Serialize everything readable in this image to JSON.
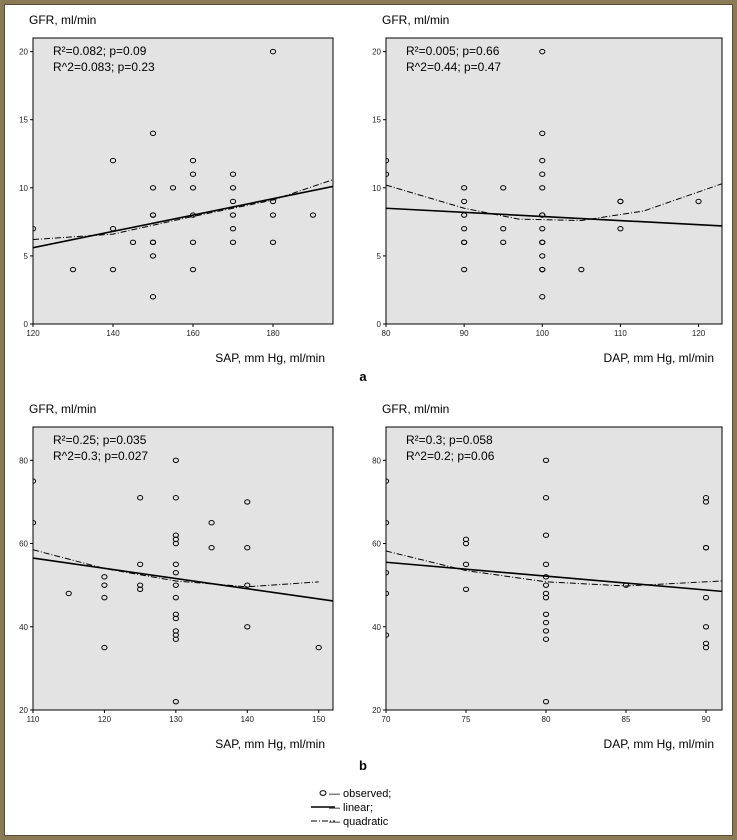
{
  "chart_data": [
    {
      "type": "scatter",
      "panel_group": "a",
      "ylabel": "GFR, ml/min",
      "xlabel": "SAP, mm Hg, ml/min",
      "stats": [
        "R²=0.082; p=0.09",
        "R^2=0.083; p=0.23"
      ],
      "xlim": [
        120,
        195
      ],
      "ylim": [
        0,
        21
      ],
      "xticks": [
        120,
        140,
        160,
        180
      ],
      "yticks": [
        0,
        5,
        10,
        15,
        20
      ],
      "points": [
        [
          120,
          7
        ],
        [
          130,
          4
        ],
        [
          140,
          12
        ],
        [
          140,
          7
        ],
        [
          140,
          4
        ],
        [
          145,
          6
        ],
        [
          150,
          14
        ],
        [
          150,
          10
        ],
        [
          150,
          8
        ],
        [
          150,
          8
        ],
        [
          150,
          6
        ],
        [
          150,
          6
        ],
        [
          150,
          5
        ],
        [
          150,
          2
        ],
        [
          155,
          10
        ],
        [
          160,
          12
        ],
        [
          160,
          11
        ],
        [
          160,
          10
        ],
        [
          160,
          8
        ],
        [
          160,
          6
        ],
        [
          160,
          4
        ],
        [
          170,
          11
        ],
        [
          170,
          10
        ],
        [
          170,
          9
        ],
        [
          170,
          8
        ],
        [
          170,
          7
        ],
        [
          170,
          6
        ],
        [
          180,
          20
        ],
        [
          180,
          9
        ],
        [
          180,
          8
        ],
        [
          180,
          6
        ],
        [
          190,
          8
        ]
      ],
      "linear": [
        [
          120,
          5.6
        ],
        [
          195,
          10.1
        ]
      ],
      "quadratic": [
        [
          120,
          6.2
        ],
        [
          140,
          6.6
        ],
        [
          160,
          7.9
        ],
        [
          180,
          9.1
        ],
        [
          195,
          10.6
        ]
      ]
    },
    {
      "type": "scatter",
      "panel_group": "a",
      "ylabel": "GFR, ml/min",
      "xlabel": "DAP, mm Hg, ml/min",
      "stats": [
        "R²=0.005; p=0.66",
        "R^2=0.44; p=0.47"
      ],
      "xlim": [
        80,
        123
      ],
      "ylim": [
        0,
        21
      ],
      "xticks": [
        80,
        90,
        100,
        110,
        120
      ],
      "yticks": [
        0,
        5,
        10,
        15,
        20
      ],
      "points": [
        [
          80,
          12
        ],
        [
          80,
          11
        ],
        [
          90,
          10
        ],
        [
          90,
          9
        ],
        [
          90,
          8
        ],
        [
          90,
          7
        ],
        [
          90,
          6
        ],
        [
          90,
          6
        ],
        [
          90,
          4
        ],
        [
          95,
          10
        ],
        [
          95,
          7
        ],
        [
          95,
          6
        ],
        [
          100,
          20
        ],
        [
          100,
          14
        ],
        [
          100,
          12
        ],
        [
          100,
          11
        ],
        [
          100,
          10
        ],
        [
          100,
          8
        ],
        [
          100,
          8
        ],
        [
          100,
          7
        ],
        [
          100,
          6
        ],
        [
          100,
          6
        ],
        [
          100,
          5
        ],
        [
          100,
          4
        ],
        [
          100,
          4
        ],
        [
          100,
          2
        ],
        [
          105,
          4
        ],
        [
          110,
          9
        ],
        [
          110,
          9
        ],
        [
          110,
          7
        ],
        [
          120,
          9
        ]
      ],
      "linear": [
        [
          80,
          8.5
        ],
        [
          123,
          7.2
        ]
      ],
      "quadratic": [
        [
          80,
          10.2
        ],
        [
          90,
          8.5
        ],
        [
          97,
          7.7
        ],
        [
          105,
          7.6
        ],
        [
          113,
          8.3
        ],
        [
          123,
          10.3
        ]
      ]
    },
    {
      "type": "scatter",
      "panel_group": "b",
      "ylabel": "GFR, ml/min",
      "xlabel": "SAP, mm Hg, ml/min",
      "stats": [
        "R²=0.25; p=0.035",
        "R^2=0.3; p=0.027"
      ],
      "xlim": [
        110,
        152
      ],
      "ylim": [
        20,
        88
      ],
      "xticks": [
        110,
        120,
        130,
        140,
        150
      ],
      "yticks": [
        20,
        40,
        60,
        80
      ],
      "points": [
        [
          110,
          75
        ],
        [
          110,
          65
        ],
        [
          115,
          48
        ],
        [
          120,
          52
        ],
        [
          120,
          50
        ],
        [
          120,
          47
        ],
        [
          120,
          35
        ],
        [
          125,
          71
        ],
        [
          125,
          55
        ],
        [
          125,
          50
        ],
        [
          125,
          49
        ],
        [
          130,
          80
        ],
        [
          130,
          71
        ],
        [
          130,
          62
        ],
        [
          130,
          61
        ],
        [
          130,
          60
        ],
        [
          130,
          55
        ],
        [
          130,
          53
        ],
        [
          130,
          50
        ],
        [
          130,
          47
        ],
        [
          130,
          43
        ],
        [
          130,
          42
        ],
        [
          130,
          39
        ],
        [
          130,
          38
        ],
        [
          130,
          37
        ],
        [
          130,
          22
        ],
        [
          135,
          65
        ],
        [
          135,
          59
        ],
        [
          140,
          70
        ],
        [
          140,
          59
        ],
        [
          140,
          50
        ],
        [
          140,
          40
        ],
        [
          150,
          35
        ]
      ],
      "linear": [
        [
          110,
          56.5
        ],
        [
          152,
          46.2
        ]
      ],
      "quadratic": [
        [
          110,
          58.5
        ],
        [
          120,
          54
        ],
        [
          130,
          51
        ],
        [
          140,
          49.6
        ],
        [
          150,
          50.8
        ]
      ]
    },
    {
      "type": "scatter",
      "panel_group": "b",
      "ylabel": "GFR, ml/min",
      "xlabel": "DAP, mm Hg, ml/min",
      "stats": [
        "R²=0.3; p=0.058",
        "R^2=0.2; p=0.06"
      ],
      "xlim": [
        70,
        91
      ],
      "ylim": [
        20,
        88
      ],
      "xticks": [
        70,
        75,
        80,
        85,
        90
      ],
      "yticks": [
        20,
        40,
        60,
        80
      ],
      "points": [
        [
          70,
          75
        ],
        [
          70,
          65
        ],
        [
          70,
          53
        ],
        [
          70,
          48
        ],
        [
          70,
          38
        ],
        [
          75,
          61
        ],
        [
          75,
          60
        ],
        [
          75,
          55
        ],
        [
          75,
          49
        ],
        [
          80,
          80
        ],
        [
          80,
          71
        ],
        [
          80,
          62
        ],
        [
          80,
          55
        ],
        [
          80,
          52
        ],
        [
          80,
          50
        ],
        [
          80,
          48
        ],
        [
          80,
          47
        ],
        [
          80,
          43
        ],
        [
          80,
          41
        ],
        [
          80,
          39
        ],
        [
          80,
          37
        ],
        [
          80,
          22
        ],
        [
          85,
          50
        ],
        [
          90,
          71
        ],
        [
          90,
          70
        ],
        [
          90,
          59
        ],
        [
          90,
          59
        ],
        [
          90,
          47
        ],
        [
          90,
          40
        ],
        [
          90,
          36
        ],
        [
          90,
          35
        ]
      ],
      "linear": [
        [
          70,
          55.5
        ],
        [
          91,
          48.5
        ]
      ],
      "quadratic": [
        [
          70,
          58.2
        ],
        [
          75,
          53.5
        ],
        [
          80,
          50.8
        ],
        [
          85,
          49.8
        ],
        [
          91,
          51
        ]
      ]
    }
  ],
  "panel_labels": [
    "a",
    "b"
  ],
  "legend": {
    "observed": "— observed;",
    "linear": "— linear;",
    "quadratic": "— quadratic"
  },
  "colors": {
    "plot_bg": "#e3e3e3",
    "frame_bg": "#ffffff",
    "border": "#8a7a55",
    "marker": "#000000"
  }
}
